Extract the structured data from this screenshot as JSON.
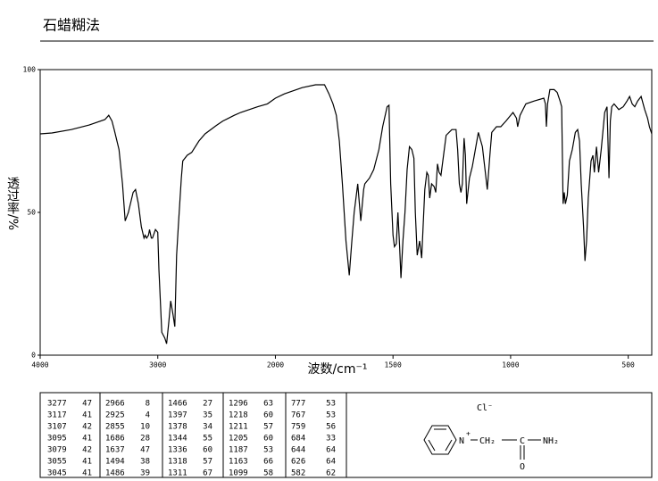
{
  "chart_data": {
    "type": "line",
    "title": "石蜡糊法",
    "x_label": "波数/cm⁻¹",
    "y_label": "透过率/%",
    "xlim": [
      4000,
      400
    ],
    "ylim": [
      0,
      100
    ],
    "xticks": [
      4000,
      3000,
      2000,
      1500,
      1000,
      500
    ],
    "yticks": [
      0,
      50,
      100
    ],
    "x_scale_change": {
      "at": 2000,
      "factor": 2
    },
    "series": [
      {
        "color": "#000000",
        "x": [
          4000,
          3900,
          3735,
          3583,
          3450,
          3417,
          3390,
          3371,
          3330,
          3300,
          3277,
          3250,
          3210,
          3189,
          3165,
          3140,
          3117,
          3107,
          3095,
          3079,
          3070,
          3055,
          3045,
          3020,
          3000,
          2990,
          2966,
          2940,
          2925,
          2905,
          2890,
          2870,
          2855,
          2840,
          2826,
          2800,
          2788,
          2750,
          2712,
          2650,
          2598,
          2500,
          2447,
          2350,
          2295,
          2150,
          2068,
          2000,
          1962,
          1886,
          1829,
          1791,
          1772,
          1755,
          1741,
          1728,
          1715,
          1700,
          1686,
          1675,
          1665,
          1650,
          1637,
          1625,
          1620,
          1600,
          1582,
          1560,
          1544,
          1525,
          1517,
          1510,
          1500,
          1494,
          1486,
          1479,
          1472,
          1466,
          1458,
          1449,
          1440,
          1430,
          1420,
          1411,
          1405,
          1397,
          1387,
          1378,
          1365,
          1356,
          1350,
          1344,
          1336,
          1325,
          1318,
          1311,
          1304,
          1296,
          1285,
          1274,
          1250,
          1232,
          1225,
          1218,
          1211,
          1205,
          1198,
          1192,
          1187,
          1175,
          1163,
          1150,
          1137,
          1120,
          1099,
          1088,
          1080,
          1060,
          1042,
          1020,
          990,
          975,
          970,
          960,
          935,
          900,
          859,
          852,
          848,
          843,
          833,
          815,
          802,
          790,
          783,
          777,
          772,
          767,
          759,
          750,
          738,
          725,
          715,
          707,
          700,
          690,
          684,
          677,
          670,
          658,
          650,
          644,
          635,
          626,
          615,
          608,
          600,
          590,
          582,
          576,
          570,
          560,
          540,
          521,
          505,
          494,
          483,
          472,
          460,
          445,
          430,
          418,
          410,
          400
        ],
        "y": [
          77.5,
          77.8,
          79,
          80.6,
          82.5,
          84,
          82,
          79,
          72,
          60,
          47,
          50,
          57,
          58,
          53,
          45,
          41,
          42,
          41,
          42,
          44,
          41,
          41,
          44,
          43,
          30,
          8,
          6,
          4,
          12,
          19,
          14,
          10,
          35,
          45,
          62,
          68,
          70,
          71,
          75,
          77.5,
          80.5,
          82,
          84,
          85,
          87,
          88,
          90,
          91.5,
          93.7,
          94.7,
          94.7,
          91.5,
          88,
          84,
          75,
          60,
          40,
          28,
          40,
          50,
          60,
          47,
          58,
          60,
          62,
          65,
          72,
          80,
          87,
          87.5,
          60,
          42,
          38,
          39,
          50,
          38,
          27,
          40,
          50,
          65,
          73,
          72,
          69,
          50,
          35,
          40,
          34,
          58,
          64,
          63,
          55,
          60,
          59,
          57,
          67,
          64,
          63,
          70,
          77,
          79,
          79,
          72,
          60,
          57,
          60,
          76,
          70,
          53,
          62,
          66,
          72,
          78,
          73,
          58,
          70,
          78,
          80,
          80,
          82,
          85,
          83,
          80,
          84,
          88,
          89,
          90,
          88,
          80,
          88,
          93,
          93,
          92,
          89,
          87,
          53,
          57,
          53,
          56,
          68,
          72,
          78,
          79,
          75,
          60,
          45,
          33,
          40,
          55,
          68,
          70,
          64,
          73,
          64,
          72,
          78,
          85,
          87,
          62,
          82,
          87,
          88,
          86,
          87,
          89,
          90.6,
          88,
          87,
          89,
          90.6,
          86,
          83,
          80,
          77.5
        ]
      }
    ]
  },
  "peak_table": [
    [
      [
        3277,
        47
      ],
      [
        3117,
        41
      ],
      [
        3107,
        42
      ],
      [
        3095,
        41
      ],
      [
        3079,
        42
      ],
      [
        3055,
        41
      ],
      [
        3045,
        41
      ]
    ],
    [
      [
        2966,
        8
      ],
      [
        2925,
        4
      ],
      [
        2855,
        10
      ],
      [
        1686,
        28
      ],
      [
        1637,
        47
      ],
      [
        1494,
        38
      ],
      [
        1486,
        39
      ]
    ],
    [
      [
        1466,
        27
      ],
      [
        1397,
        35
      ],
      [
        1378,
        34
      ],
      [
        1344,
        55
      ],
      [
        1336,
        60
      ],
      [
        1318,
        57
      ],
      [
        1311,
        67
      ]
    ],
    [
      [
        1296,
        63
      ],
      [
        1218,
        60
      ],
      [
        1211,
        57
      ],
      [
        1205,
        60
      ],
      [
        1187,
        53
      ],
      [
        1163,
        66
      ],
      [
        1099,
        58
      ]
    ],
    [
      [
        777,
        53
      ],
      [
        767,
        53
      ],
      [
        759,
        56
      ],
      [
        684,
        33
      ],
      [
        644,
        64
      ],
      [
        626,
        64
      ],
      [
        582,
        62
      ]
    ]
  ],
  "structure": {
    "anion": "Cl⁻",
    "n": "N",
    "charge": "+",
    "ch2": "CH₂",
    "c": "C",
    "o": "O",
    "nh2": "NH₂"
  }
}
